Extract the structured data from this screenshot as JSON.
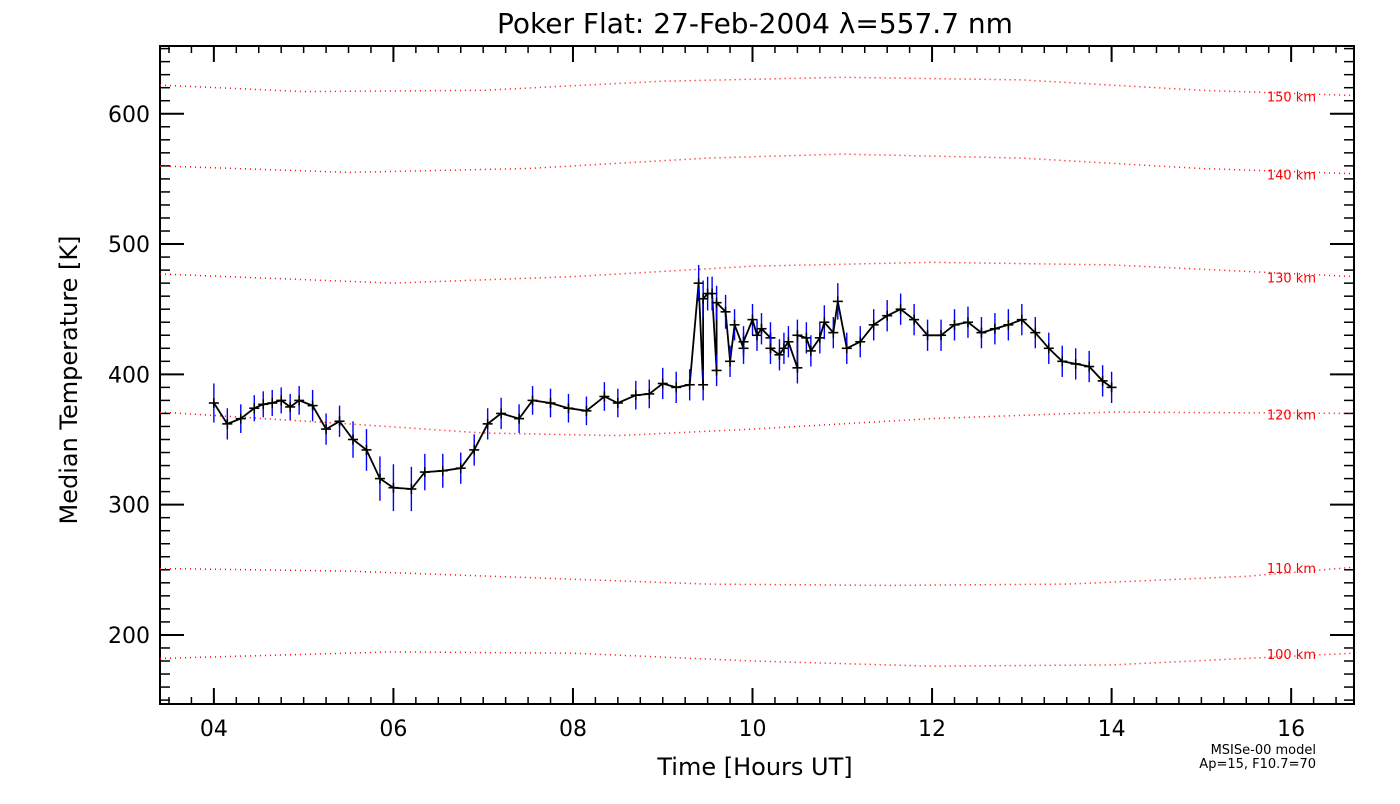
{
  "chart_data": {
    "type": "line",
    "title": "Poker Flat: 27-Feb-2004 λ=557.7 nm",
    "xlabel": "Time [Hours UT]",
    "ylabel": "Median Temperature [K]",
    "xlim": [
      3.4,
      16.7
    ],
    "ylim": [
      147,
      652
    ],
    "xticks": [
      4,
      6,
      8,
      10,
      12,
      14,
      16
    ],
    "xtick_labels": [
      "04",
      "06",
      "08",
      "10",
      "12",
      "14",
      "16"
    ],
    "yticks": [
      200,
      300,
      400,
      500,
      600
    ],
    "ytick_labels": [
      "200",
      "300",
      "400",
      "500",
      "600"
    ],
    "grid": false,
    "colors": {
      "data_line": "#000000",
      "error_bars": "#0000ff",
      "model": "#ff0000",
      "axes": "#000000"
    },
    "series": [
      {
        "points": [
          [
            4.0,
            378,
            15
          ],
          [
            4.15,
            362,
            12
          ],
          [
            4.3,
            366,
            11
          ],
          [
            4.45,
            374,
            10
          ],
          [
            4.55,
            377,
            10
          ],
          [
            4.65,
            378,
            10
          ],
          [
            4.75,
            380,
            10
          ],
          [
            4.85,
            375,
            10
          ],
          [
            4.95,
            380,
            11
          ],
          [
            5.1,
            376,
            12
          ],
          [
            5.25,
            358,
            12
          ],
          [
            5.4,
            364,
            12
          ],
          [
            5.55,
            350,
            14
          ],
          [
            5.7,
            342,
            16
          ],
          [
            5.85,
            320,
            17
          ],
          [
            6.0,
            313,
            18
          ],
          [
            6.2,
            312,
            17
          ],
          [
            6.35,
            325,
            14
          ],
          [
            6.55,
            326,
            13
          ],
          [
            6.75,
            328,
            12
          ],
          [
            6.9,
            342,
            12
          ],
          [
            7.05,
            362,
            12
          ],
          [
            7.2,
            370,
            12
          ],
          [
            7.4,
            366,
            11
          ],
          [
            7.55,
            380,
            11
          ],
          [
            7.75,
            378,
            11
          ],
          [
            7.95,
            374,
            11
          ],
          [
            8.15,
            372,
            11
          ],
          [
            8.35,
            383,
            11
          ],
          [
            8.5,
            378,
            11
          ],
          [
            8.7,
            384,
            11
          ],
          [
            8.85,
            385,
            11
          ],
          [
            9.0,
            393,
            12
          ],
          [
            9.15,
            390,
            12
          ],
          [
            9.3,
            392,
            12
          ],
          [
            9.45,
            392,
            12
          ],
          [
            9.6,
            403,
            12
          ],
          [
            9.75,
            410,
            12
          ],
          [
            9.9,
            420,
            12
          ],
          [
            10.05,
            430,
            12
          ],
          [
            10.2,
            428,
            12
          ],
          [
            10.35,
            420,
            12
          ],
          [
            10.5,
            405,
            12
          ],
          [
            10.65,
            418,
            12
          ],
          [
            10.8,
            440,
            13
          ],
          [
            10.95,
            456,
            14
          ],
          [
            9.4,
            470,
            14
          ],
          [
            9.45,
            458,
            14
          ],
          [
            9.5,
            462,
            13
          ],
          [
            9.55,
            462,
            13
          ],
          [
            9.6,
            455,
            13
          ],
          [
            9.7,
            448,
            13
          ],
          [
            9.8,
            438,
            12
          ],
          [
            9.9,
            425,
            12
          ],
          [
            10.0,
            442,
            12
          ],
          [
            10.1,
            435,
            12
          ],
          [
            10.2,
            420,
            12
          ],
          [
            10.3,
            415,
            12
          ],
          [
            10.4,
            425,
            12
          ],
          [
            10.5,
            430,
            12
          ],
          [
            10.6,
            428,
            12
          ],
          [
            10.75,
            428,
            12
          ],
          [
            10.9,
            432,
            12
          ],
          [
            11.05,
            420,
            12
          ],
          [
            11.2,
            425,
            12
          ],
          [
            11.35,
            438,
            12
          ],
          [
            11.5,
            445,
            12
          ],
          [
            11.65,
            450,
            12
          ],
          [
            11.8,
            442,
            12
          ],
          [
            11.95,
            430,
            12
          ],
          [
            12.1,
            430,
            12
          ],
          [
            12.25,
            438,
            12
          ],
          [
            12.4,
            440,
            12
          ],
          [
            12.55,
            432,
            12
          ],
          [
            12.7,
            435,
            12
          ],
          [
            12.85,
            438,
            12
          ],
          [
            13.0,
            442,
            12
          ],
          [
            13.15,
            432,
            12
          ],
          [
            13.3,
            420,
            12
          ],
          [
            13.45,
            410,
            12
          ],
          [
            13.6,
            408,
            12
          ],
          [
            13.75,
            406,
            12
          ],
          [
            13.9,
            395,
            12
          ],
          [
            14.0,
            390,
            12
          ]
        ]
      }
    ],
    "model_curves": [
      {
        "label": "150 km",
        "values": [
          [
            3.4,
            622
          ],
          [
            5.0,
            617
          ],
          [
            7.0,
            618
          ],
          [
            9.0,
            625
          ],
          [
            11.0,
            628
          ],
          [
            13.0,
            626
          ],
          [
            15.0,
            618
          ],
          [
            16.7,
            614
          ]
        ]
      },
      {
        "label": "140 km",
        "values": [
          [
            3.4,
            560
          ],
          [
            5.5,
            555
          ],
          [
            7.5,
            558
          ],
          [
            9.5,
            566
          ],
          [
            11.0,
            569
          ],
          [
            13.0,
            566
          ],
          [
            15.0,
            558
          ],
          [
            16.7,
            554
          ]
        ]
      },
      {
        "label": "130 km",
        "values": [
          [
            3.4,
            477
          ],
          [
            6.0,
            470
          ],
          [
            8.0,
            475
          ],
          [
            10.0,
            483
          ],
          [
            12.0,
            486
          ],
          [
            14.0,
            484
          ],
          [
            16.7,
            475
          ]
        ]
      },
      {
        "label": "120 km",
        "values": [
          [
            3.4,
            371
          ],
          [
            5.5,
            362
          ],
          [
            7.0,
            355
          ],
          [
            8.5,
            353
          ],
          [
            10.0,
            358
          ],
          [
            12.0,
            366
          ],
          [
            14.0,
            371
          ],
          [
            16.7,
            370
          ]
        ]
      },
      {
        "label": "110 km",
        "values": [
          [
            3.4,
            251
          ],
          [
            5.5,
            249
          ],
          [
            7.5,
            244
          ],
          [
            9.5,
            239
          ],
          [
            11.5,
            238
          ],
          [
            13.5,
            239
          ],
          [
            15.5,
            245
          ],
          [
            16.7,
            252
          ]
        ]
      },
      {
        "label": "100 km",
        "values": [
          [
            3.4,
            182
          ],
          [
            6.0,
            187
          ],
          [
            8.0,
            186
          ],
          [
            10.0,
            180
          ],
          [
            12.0,
            176
          ],
          [
            14.0,
            177
          ],
          [
            16.7,
            186
          ]
        ]
      }
    ],
    "annotations": [
      "MSISe-00 model",
      "Ap=15, F10.7=70"
    ]
  }
}
